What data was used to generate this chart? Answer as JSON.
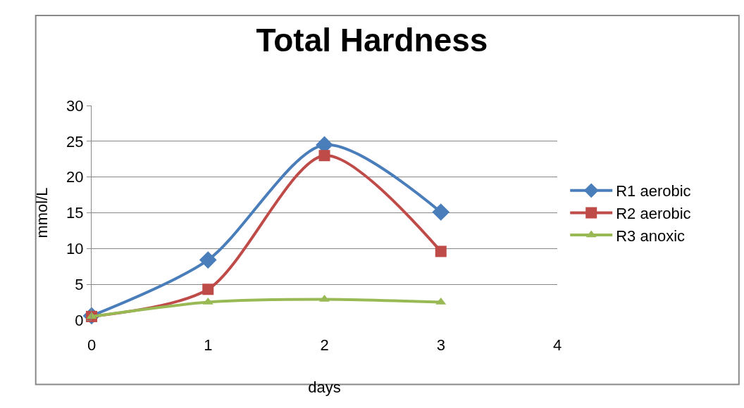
{
  "chart_data": {
    "type": "line",
    "title": "Total Hardness",
    "xlabel": "days",
    "ylabel": "mmol/L",
    "x": [
      0,
      1,
      2,
      3
    ],
    "xlim": [
      0,
      4
    ],
    "xticks": [
      0,
      1,
      2,
      3,
      4
    ],
    "ylim": [
      0,
      30
    ],
    "yticks": [
      0,
      5,
      10,
      15,
      20,
      25,
      30
    ],
    "grid": "y",
    "legend": "right",
    "line_style": "solid",
    "series": [
      {
        "name": "R1 aerobic",
        "color": "#4a7ebb",
        "marker": "diamond",
        "values": [
          0.6,
          8.4,
          24.5,
          15.1
        ]
      },
      {
        "name": "R2 aerobic",
        "color": "#be4b48",
        "marker": "square",
        "values": [
          0.5,
          4.3,
          23.0,
          9.6
        ]
      },
      {
        "name": "R3 anoxic",
        "color": "#98b954",
        "marker": "triangle",
        "values": [
          0.5,
          2.5,
          2.9,
          2.5
        ]
      }
    ]
  }
}
